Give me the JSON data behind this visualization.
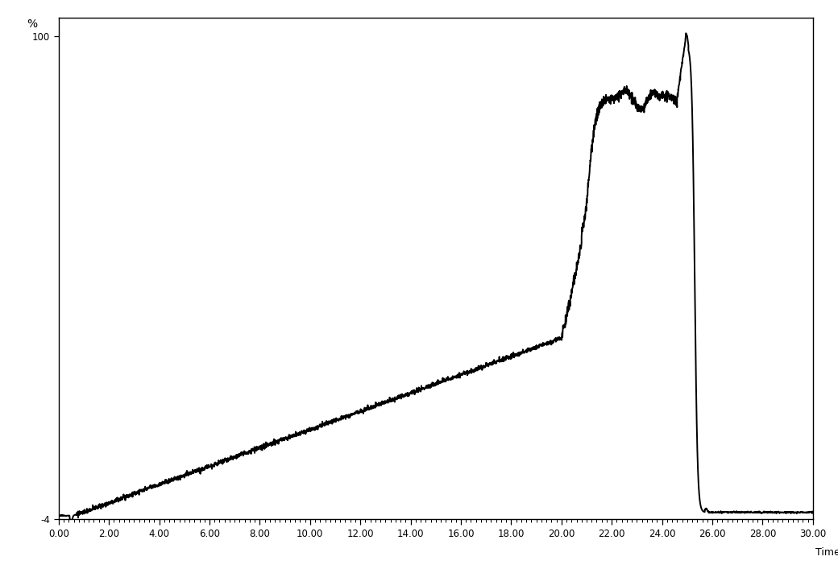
{
  "title": "",
  "xlabel": "Time",
  "ylabel": "%",
  "xlim": [
    0.0,
    30.0
  ],
  "ylim": [
    -4,
    104
  ],
  "xticks": [
    0.0,
    2.0,
    4.0,
    6.0,
    8.0,
    10.0,
    12.0,
    14.0,
    16.0,
    18.0,
    20.0,
    22.0,
    24.0,
    26.0,
    28.0,
    30.0
  ],
  "ytick_positions": [
    -4,
    100
  ],
  "ytick_labels": [
    "-4",
    "100"
  ],
  "line_color": "#000000",
  "line_width": 1.4,
  "background_color": "#ffffff"
}
